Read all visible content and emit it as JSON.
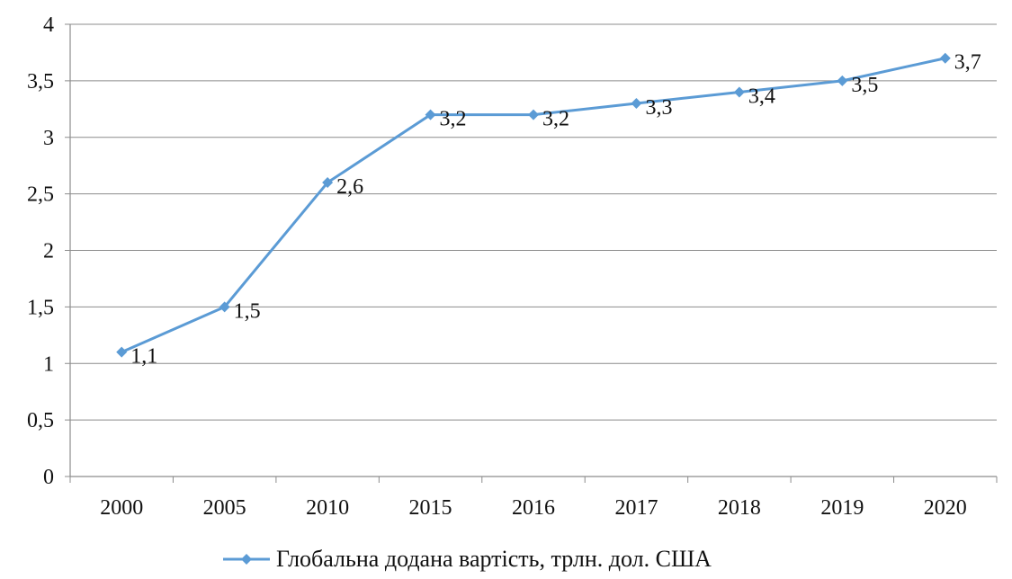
{
  "chart_data": {
    "type": "line",
    "title": "",
    "xlabel": "",
    "ylabel": "",
    "categories": [
      "2000",
      "2005",
      "2010",
      "2015",
      "2016",
      "2017",
      "2018",
      "2019",
      "2020"
    ],
    "y_ticks": [
      "0",
      "0,5",
      "1",
      "1,5",
      "2",
      "2,5",
      "3",
      "3,5",
      "4"
    ],
    "ylim": [
      0,
      4
    ],
    "grid": "horizontal",
    "legend_position": "bottom",
    "series": [
      {
        "name": "Глобальна додана вартість, трлн. дол. США",
        "color": "#5b9bd5",
        "values": [
          1.1,
          1.5,
          2.6,
          3.2,
          3.2,
          3.3,
          3.4,
          3.5,
          3.7
        ],
        "labels": [
          "1,1",
          "1,5",
          "2,6",
          "3,2",
          "3,2",
          "3,3",
          "3,4",
          "3,5",
          "3,7"
        ]
      }
    ]
  }
}
